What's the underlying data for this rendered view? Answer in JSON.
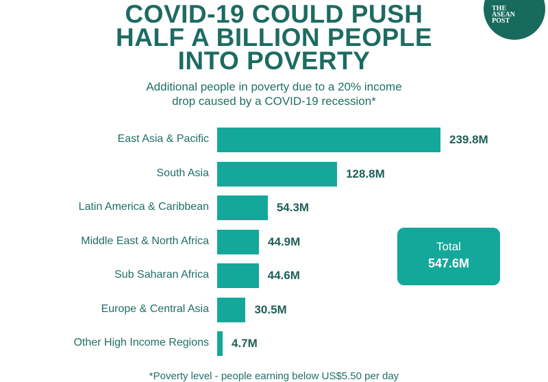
{
  "header": {
    "title_lines": [
      "COVID-19 COULD PUSH",
      "HALF A BILLION PEOPLE",
      "INTO POVERTY"
    ],
    "subtitle_lines": [
      "Additional people in poverty due to a 20% income",
      "drop caused by a COVID-19 recession*"
    ],
    "logo_text": "THE ASEAN POST"
  },
  "chart_data": {
    "type": "bar",
    "orientation": "horizontal",
    "categories": [
      "East Asia & Pacific",
      "South Asia",
      "Latin America & Caribbean",
      "Middle East & North Africa",
      "Sub Saharan Africa",
      "Europe & Central Asia",
      "Other High Income Regions"
    ],
    "values": [
      239.8,
      128.8,
      54.3,
      44.9,
      44.6,
      30.5,
      4.7
    ],
    "data_labels": [
      "239.8M",
      "128.8M",
      "54.3M",
      "44.9M",
      "44.6M",
      "30.5M",
      "4.7M"
    ],
    "unit": "M",
    "bar_color": "#14a89a",
    "grid": false
  },
  "total": {
    "label": "Total",
    "value": "547.6M"
  },
  "footnote": "*Poverty level - people earning below US$5.50 per day"
}
